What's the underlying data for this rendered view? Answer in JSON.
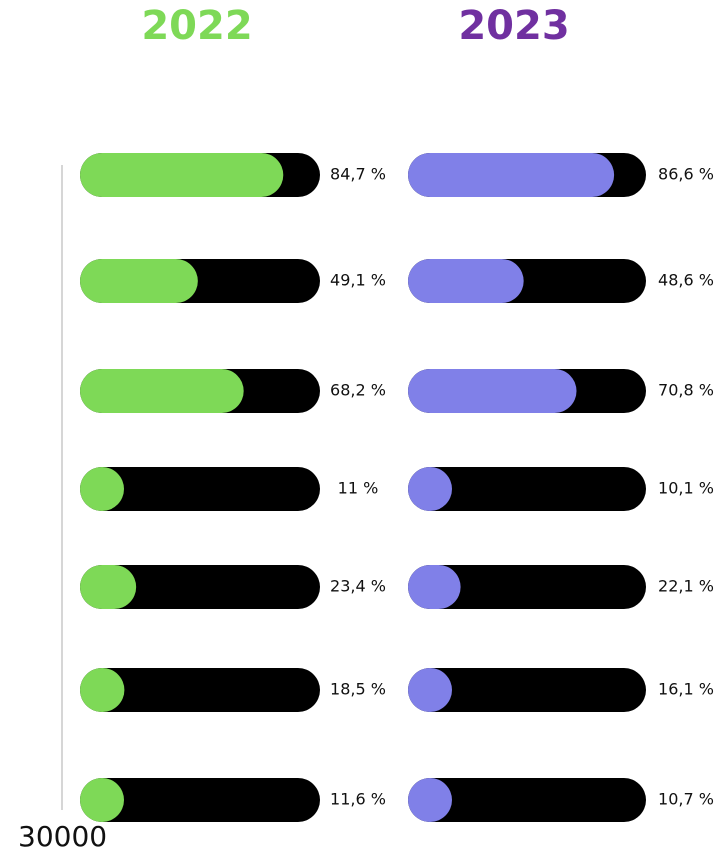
{
  "chart_data": {
    "type": "progress",
    "xlim": [
      0,
      100
    ],
    "annotation": "30000",
    "series": [
      {
        "name": "2022",
        "color": "#7ed957",
        "title_color": "#7ed957",
        "values": [
          84.7,
          49.1,
          68.2,
          11,
          23.4,
          18.5,
          11.6
        ],
        "value_labels": [
          "84,7 %",
          "49,1 %",
          "68,2 %",
          "11 %",
          "23,4 %",
          "18,5 %",
          "11,6 %"
        ]
      },
      {
        "name": "2023",
        "color": "#8080e8",
        "title_color": "#7030a0",
        "values": [
          86.6,
          48.6,
          70.8,
          10.1,
          22.1,
          16.1,
          10.7
        ],
        "value_labels": [
          "86,6 %",
          "48,6 %",
          "70,8 %",
          "10,1 %",
          "22,1 %",
          "16,1 %",
          "10,7 %"
        ]
      }
    ]
  }
}
